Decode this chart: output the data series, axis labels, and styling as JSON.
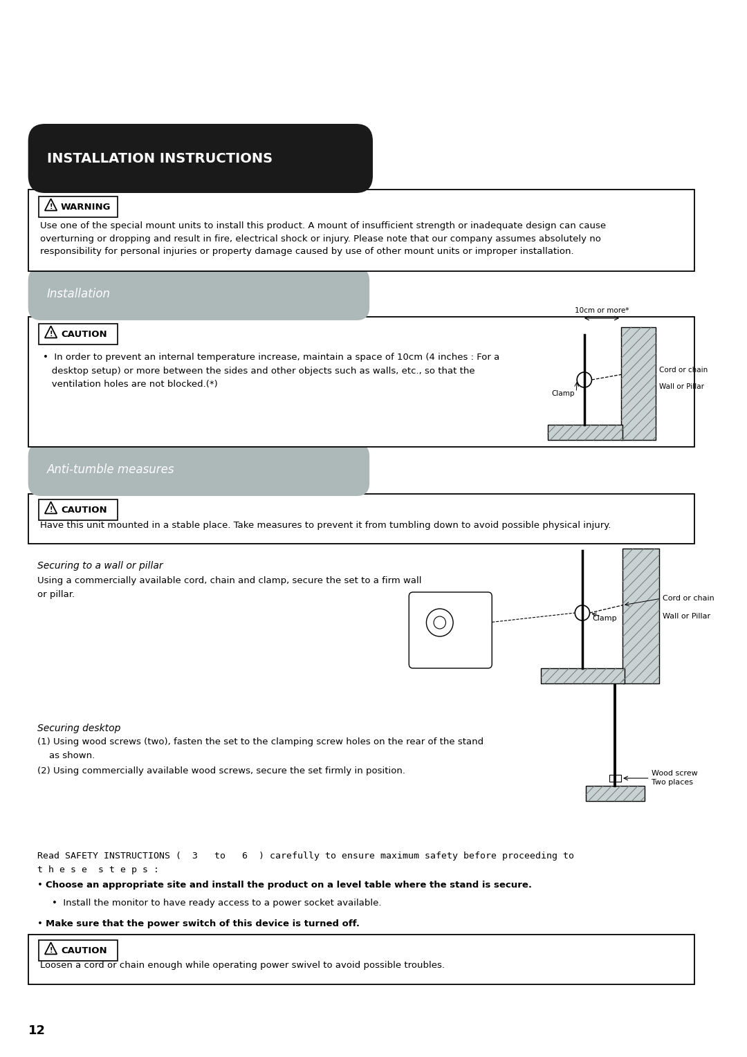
{
  "bg_color": "#ffffff",
  "title_bg": "#1a1a1a",
  "title_text": "INSTALLATION INSTRUCTIONS",
  "title_text_color": "#ffffff",
  "section_bg": "#adb8b8",
  "section1_text": "Installation",
  "section2_text": "Anti-tumble measures",
  "warning_label": "WARNING",
  "caution_label": "CAUTION",
  "warning_body": "Use one of the special mount units to install this product. A mount of insufficient strength or inadequate design can cause\noverturning or dropping and result in fire, electrical shock or injury. Please note that our company assumes absolutely no\nresponsibility for personal injuries or property damage caused by use of other mount units or improper installation.",
  "caution1_bullet": "•  In order to prevent an internal temperature increase, maintain a space of 10cm (4 inches : For a\n   desktop setup) or more between the sides and other objects such as walls, etc., so that the\n   ventilation holes are not blocked.(*)",
  "caution2_body": "Have this unit mounted in a stable place. Take measures to prevent it from tumbling down to avoid possible physical injury.",
  "sec_wall_title": "Securing to a wall or pillar",
  "sec_wall_body": "Using a commercially available cord, chain and clamp, secure the set to a firm wall\nor pillar.",
  "sec_desk_title": "Securing desktop",
  "sec_desk_line1": "(1) Using wood screws (two), fasten the set to the clamping screw holes on the rear of the stand",
  "sec_desk_line2": "    as shown.",
  "sec_desk_line3": "(2) Using commercially available wood screws, secure the set firmly in position.",
  "safety_line1": "Read SAFETY INSTRUCTIONS (  3   to   6  ) carefully to ensure maximum safety before proceeding to",
  "safety_line2": "t h e s e  s t e p s :",
  "bullet1_bold": "Choose an appropriate site and install the product on a level table where the stand is secure.",
  "bullet1_sub": "Install the monitor to have ready access to a power socket available.",
  "bullet2_bold": "Make sure that the power switch of this device is turned off.",
  "caution3_body": "Loosen a cord or chain enough while operating power swivel to avoid possible troubles.",
  "page_number": "12",
  "hatch_color": "#c8d2d2"
}
